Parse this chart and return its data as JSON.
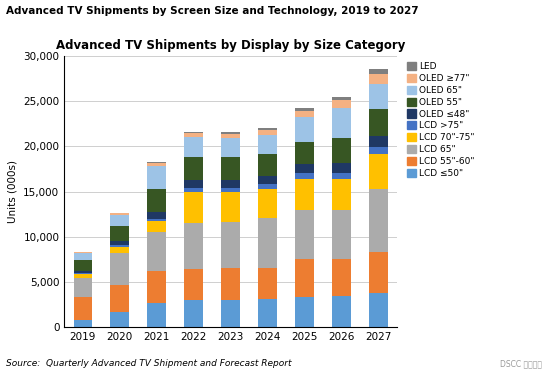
{
  "title_main": "Advanced TV Shipments by Screen Size and Technology, 2019 to 2027",
  "title_chart": "Advanced TV Shipments by Display by Size Category",
  "ylabel": "Units (000s)",
  "source": "Source:  Quarterly Advanced TV Shipment and Forecast Report",
  "years": [
    2019,
    2020,
    2021,
    2022,
    2023,
    2024,
    2025,
    2026,
    2027
  ],
  "ylim": [
    0,
    30000
  ],
  "yticks": [
    0,
    5000,
    10000,
    15000,
    20000,
    25000,
    30000
  ],
  "series": [
    {
      "label": "LCD ≤50\"",
      "color": "#5B9BD5",
      "values": [
        800,
        1700,
        2700,
        3000,
        3000,
        3100,
        3300,
        3500,
        3800
      ]
    },
    {
      "label": "LCD 55\"-60\"",
      "color": "#ED7D31",
      "values": [
        2500,
        3000,
        3500,
        3500,
        3600,
        3500,
        4200,
        4000,
        4500
      ]
    },
    {
      "label": "LCD 65\"",
      "color": "#ABABAB",
      "values": [
        2200,
        3500,
        4300,
        5000,
        5000,
        5500,
        5500,
        5500,
        7000
      ]
    },
    {
      "label": "LCD 70\"-75\"",
      "color": "#FFC000",
      "values": [
        400,
        700,
        1200,
        3500,
        3300,
        3200,
        3400,
        3400,
        3800
      ]
    },
    {
      "label": "LCD >75\"",
      "color": "#4472C4",
      "values": [
        100,
        200,
        300,
        400,
        500,
        500,
        600,
        700,
        800
      ]
    },
    {
      "label": "OLED ≤48\"",
      "color": "#1F3864",
      "values": [
        200,
        400,
        700,
        900,
        900,
        900,
        1000,
        1100,
        1200
      ]
    },
    {
      "label": "OLED 55\"",
      "color": "#375623",
      "values": [
        1200,
        1700,
        2600,
        2500,
        2500,
        2500,
        2500,
        2700,
        3000
      ]
    },
    {
      "label": "OLED 65\"",
      "color": "#9DC3E6",
      "values": [
        800,
        1200,
        2500,
        2200,
        2100,
        2100,
        2700,
        3300,
        2800
      ]
    },
    {
      "label": "OLED ≥77\"",
      "color": "#F4B183",
      "values": [
        100,
        200,
        400,
        500,
        500,
        500,
        700,
        900,
        1100
      ]
    },
    {
      "label": "LED",
      "color": "#7F7F7F",
      "values": [
        0,
        0,
        100,
        100,
        200,
        200,
        300,
        400,
        500
      ]
    }
  ],
  "background_color": "#FFFFFF",
  "plot_bg_color": "#FFFFFF",
  "grid_color": "#C8C8C8",
  "bar_width": 0.5
}
